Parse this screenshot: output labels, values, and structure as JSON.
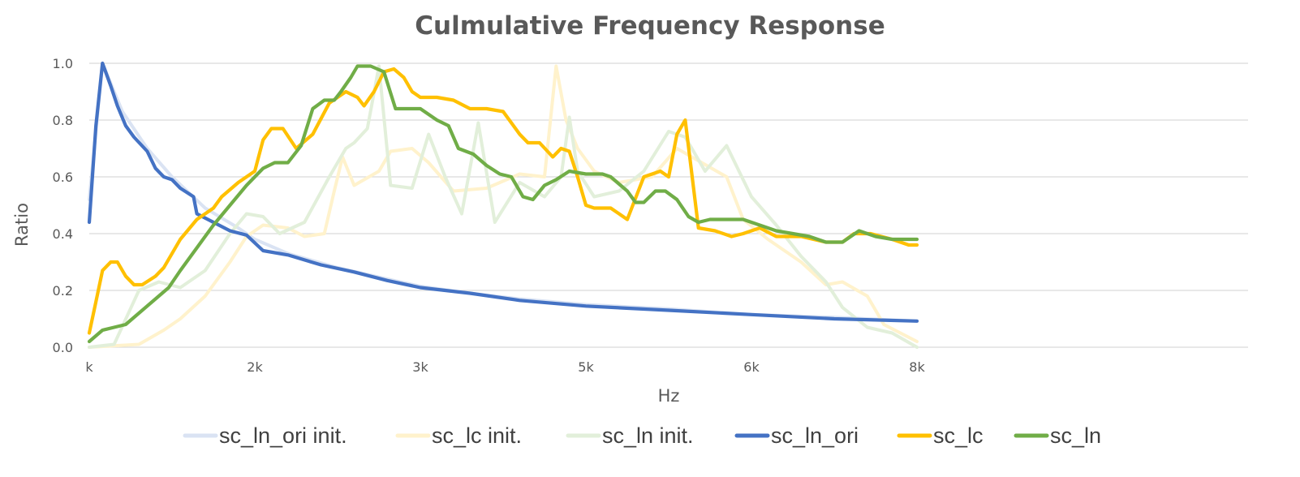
{
  "chart_data": {
    "type": "line",
    "title": "Culmulative Frequency Response",
    "xlabel": "Hz",
    "ylabel": "Ratio",
    "xlim": [
      1,
      8
    ],
    "ylim": [
      0,
      1.0
    ],
    "grid": true,
    "legend": "bottom",
    "x_ticks": [
      {
        "value": 1,
        "label": "k"
      },
      {
        "value": 2,
        "label": "2k"
      },
      {
        "value": 3,
        "label": "3k"
      },
      {
        "value": 4,
        "label": "5k"
      },
      {
        "value": 5,
        "label": "6k"
      },
      {
        "value": 6,
        "label": "8k"
      }
    ],
    "y_ticks": [
      {
        "value": 0.0,
        "label": "0.0"
      },
      {
        "value": 0.2,
        "label": "0.2"
      },
      {
        "value": 0.4,
        "label": "0.4"
      },
      {
        "value": 0.6,
        "label": "0.6"
      },
      {
        "value": 0.8,
        "label": "0.8"
      },
      {
        "value": 1.0,
        "label": "1.0"
      }
    ],
    "series": [
      {
        "name": "sc_ln_ori init.",
        "color": "#dae3f3",
        "points": [
          [
            1,
            0.52
          ],
          [
            1.08,
            1.0
          ],
          [
            1.2,
            0.83
          ],
          [
            1.35,
            0.7
          ],
          [
            1.5,
            0.6
          ],
          [
            1.7,
            0.49
          ],
          [
            1.9,
            0.42
          ],
          [
            2,
            0.38
          ],
          [
            2.2,
            0.33
          ],
          [
            2.5,
            0.28
          ],
          [
            2.8,
            0.24
          ],
          [
            3,
            0.215
          ],
          [
            3.3,
            0.19
          ],
          [
            3.6,
            0.17
          ],
          [
            4,
            0.15
          ],
          [
            4.5,
            0.135
          ],
          [
            5,
            0.115
          ],
          [
            5.5,
            0.105
          ],
          [
            6,
            0.092
          ]
        ]
      },
      {
        "name": "sc_lc init.",
        "color": "#fff2cc",
        "points": [
          [
            1,
            0.0
          ],
          [
            1.3,
            0.01
          ],
          [
            1.45,
            0.06
          ],
          [
            1.55,
            0.1
          ],
          [
            1.7,
            0.18
          ],
          [
            1.85,
            0.3
          ],
          [
            1.95,
            0.39
          ],
          [
            2.05,
            0.43
          ],
          [
            2.2,
            0.42
          ],
          [
            2.3,
            0.39
          ],
          [
            2.42,
            0.4
          ],
          [
            2.48,
            0.55
          ],
          [
            2.53,
            0.67
          ],
          [
            2.6,
            0.57
          ],
          [
            2.75,
            0.62
          ],
          [
            2.82,
            0.69
          ],
          [
            2.95,
            0.7
          ],
          [
            3.05,
            0.65
          ],
          [
            3.2,
            0.55
          ],
          [
            3.4,
            0.56
          ],
          [
            3.6,
            0.61
          ],
          [
            3.75,
            0.6
          ],
          [
            3.82,
            0.99
          ],
          [
            3.88,
            0.8
          ],
          [
            3.95,
            0.7
          ],
          [
            4.05,
            0.62
          ],
          [
            4.2,
            0.58
          ],
          [
            4.4,
            0.6
          ],
          [
            4.55,
            0.7
          ],
          [
            4.7,
            0.65
          ],
          [
            4.85,
            0.6
          ],
          [
            4.95,
            0.45
          ],
          [
            5.1,
            0.38
          ],
          [
            5.3,
            0.3
          ],
          [
            5.45,
            0.22
          ],
          [
            5.55,
            0.23
          ],
          [
            5.7,
            0.18
          ],
          [
            5.8,
            0.08
          ],
          [
            6,
            0.02
          ]
        ]
      },
      {
        "name": "sc_ln init.",
        "color": "#e2efda",
        "points": [
          [
            1,
            0.0
          ],
          [
            1.15,
            0.01
          ],
          [
            1.3,
            0.2
          ],
          [
            1.42,
            0.23
          ],
          [
            1.55,
            0.21
          ],
          [
            1.7,
            0.27
          ],
          [
            1.85,
            0.4
          ],
          [
            1.95,
            0.47
          ],
          [
            2.05,
            0.46
          ],
          [
            2.15,
            0.4
          ],
          [
            2.3,
            0.44
          ],
          [
            2.45,
            0.6
          ],
          [
            2.55,
            0.7
          ],
          [
            2.6,
            0.72
          ],
          [
            2.68,
            0.77
          ],
          [
            2.75,
            0.99
          ],
          [
            2.82,
            0.57
          ],
          [
            2.95,
            0.56
          ],
          [
            3.05,
            0.75
          ],
          [
            3.15,
            0.6
          ],
          [
            3.25,
            0.47
          ],
          [
            3.35,
            0.79
          ],
          [
            3.45,
            0.44
          ],
          [
            3.6,
            0.58
          ],
          [
            3.75,
            0.53
          ],
          [
            3.85,
            0.6
          ],
          [
            3.9,
            0.81
          ],
          [
            3.95,
            0.62
          ],
          [
            4.05,
            0.53
          ],
          [
            4.2,
            0.55
          ],
          [
            4.35,
            0.62
          ],
          [
            4.5,
            0.76
          ],
          [
            4.6,
            0.74
          ],
          [
            4.72,
            0.62
          ],
          [
            4.85,
            0.71
          ],
          [
            5.0,
            0.53
          ],
          [
            5.15,
            0.43
          ],
          [
            5.3,
            0.32
          ],
          [
            5.45,
            0.23
          ],
          [
            5.55,
            0.14
          ],
          [
            5.7,
            0.07
          ],
          [
            5.85,
            0.05
          ],
          [
            6,
            0.0
          ]
        ]
      },
      {
        "name": "sc_ln_ori",
        "color": "#4472c4",
        "points": [
          [
            1,
            0.44
          ],
          [
            1.04,
            0.78
          ],
          [
            1.08,
            1.0
          ],
          [
            1.13,
            0.92
          ],
          [
            1.17,
            0.85
          ],
          [
            1.22,
            0.78
          ],
          [
            1.27,
            0.74
          ],
          [
            1.35,
            0.69
          ],
          [
            1.4,
            0.63
          ],
          [
            1.45,
            0.6
          ],
          [
            1.5,
            0.59
          ],
          [
            1.55,
            0.56
          ],
          [
            1.63,
            0.53
          ],
          [
            1.65,
            0.47
          ],
          [
            1.75,
            0.44
          ],
          [
            1.85,
            0.41
          ],
          [
            1.95,
            0.395
          ],
          [
            2.05,
            0.34
          ],
          [
            2.2,
            0.325
          ],
          [
            2.4,
            0.29
          ],
          [
            2.6,
            0.265
          ],
          [
            2.8,
            0.235
          ],
          [
            3,
            0.21
          ],
          [
            3.3,
            0.19
          ],
          [
            3.6,
            0.165
          ],
          [
            4,
            0.145
          ],
          [
            4.5,
            0.13
          ],
          [
            5,
            0.115
          ],
          [
            5.5,
            0.1
          ],
          [
            6,
            0.092
          ]
        ]
      },
      {
        "name": "sc_lc",
        "color": "#ffc000",
        "points": [
          [
            1,
            0.05
          ],
          [
            1.04,
            0.16
          ],
          [
            1.08,
            0.27
          ],
          [
            1.13,
            0.3
          ],
          [
            1.17,
            0.3
          ],
          [
            1.22,
            0.25
          ],
          [
            1.27,
            0.22
          ],
          [
            1.32,
            0.22
          ],
          [
            1.4,
            0.25
          ],
          [
            1.45,
            0.28
          ],
          [
            1.55,
            0.38
          ],
          [
            1.65,
            0.45
          ],
          [
            1.75,
            0.49
          ],
          [
            1.8,
            0.53
          ],
          [
            1.9,
            0.58
          ],
          [
            2.0,
            0.62
          ],
          [
            2.05,
            0.73
          ],
          [
            2.1,
            0.77
          ],
          [
            2.17,
            0.77
          ],
          [
            2.25,
            0.7
          ],
          [
            2.35,
            0.75
          ],
          [
            2.45,
            0.86
          ],
          [
            2.55,
            0.9
          ],
          [
            2.62,
            0.88
          ],
          [
            2.66,
            0.85
          ],
          [
            2.72,
            0.9
          ],
          [
            2.78,
            0.97
          ],
          [
            2.84,
            0.98
          ],
          [
            2.9,
            0.95
          ],
          [
            2.95,
            0.9
          ],
          [
            3.0,
            0.88
          ],
          [
            3.1,
            0.88
          ],
          [
            3.2,
            0.87
          ],
          [
            3.3,
            0.84
          ],
          [
            3.4,
            0.84
          ],
          [
            3.5,
            0.83
          ],
          [
            3.6,
            0.75
          ],
          [
            3.65,
            0.72
          ],
          [
            3.72,
            0.72
          ],
          [
            3.8,
            0.67
          ],
          [
            3.85,
            0.7
          ],
          [
            3.9,
            0.69
          ],
          [
            3.95,
            0.6
          ],
          [
            4.0,
            0.5
          ],
          [
            4.05,
            0.49
          ],
          [
            4.15,
            0.49
          ],
          [
            4.25,
            0.45
          ],
          [
            4.35,
            0.6
          ],
          [
            4.45,
            0.62
          ],
          [
            4.5,
            0.6
          ],
          [
            4.55,
            0.75
          ],
          [
            4.6,
            0.8
          ],
          [
            4.68,
            0.42
          ],
          [
            4.78,
            0.41
          ],
          [
            4.88,
            0.39
          ],
          [
            4.95,
            0.4
          ],
          [
            5.05,
            0.42
          ],
          [
            5.15,
            0.39
          ],
          [
            5.3,
            0.39
          ],
          [
            5.45,
            0.37
          ],
          [
            5.55,
            0.37
          ],
          [
            5.62,
            0.4
          ],
          [
            5.72,
            0.4
          ],
          [
            5.85,
            0.38
          ],
          [
            5.95,
            0.36
          ],
          [
            6,
            0.36
          ]
        ]
      },
      {
        "name": "sc_ln",
        "color": "#70ad47",
        "points": [
          [
            1,
            0.02
          ],
          [
            1.08,
            0.06
          ],
          [
            1.15,
            0.07
          ],
          [
            1.22,
            0.08
          ],
          [
            1.3,
            0.12
          ],
          [
            1.4,
            0.17
          ],
          [
            1.48,
            0.21
          ],
          [
            1.55,
            0.27
          ],
          [
            1.65,
            0.35
          ],
          [
            1.75,
            0.43
          ],
          [
            1.85,
            0.5
          ],
          [
            1.95,
            0.57
          ],
          [
            2.05,
            0.63
          ],
          [
            2.12,
            0.65
          ],
          [
            2.2,
            0.65
          ],
          [
            2.28,
            0.71
          ],
          [
            2.35,
            0.84
          ],
          [
            2.42,
            0.87
          ],
          [
            2.48,
            0.87
          ],
          [
            2.52,
            0.9
          ],
          [
            2.58,
            0.95
          ],
          [
            2.62,
            0.99
          ],
          [
            2.7,
            0.99
          ],
          [
            2.78,
            0.97
          ],
          [
            2.85,
            0.84
          ],
          [
            3.0,
            0.84
          ],
          [
            3.1,
            0.8
          ],
          [
            3.17,
            0.78
          ],
          [
            3.23,
            0.7
          ],
          [
            3.32,
            0.68
          ],
          [
            3.4,
            0.64
          ],
          [
            3.48,
            0.61
          ],
          [
            3.55,
            0.6
          ],
          [
            3.62,
            0.53
          ],
          [
            3.68,
            0.52
          ],
          [
            3.75,
            0.57
          ],
          [
            3.82,
            0.59
          ],
          [
            3.9,
            0.62
          ],
          [
            4.0,
            0.61
          ],
          [
            4.1,
            0.61
          ],
          [
            4.15,
            0.6
          ],
          [
            4.25,
            0.55
          ],
          [
            4.3,
            0.51
          ],
          [
            4.35,
            0.51
          ],
          [
            4.42,
            0.55
          ],
          [
            4.48,
            0.55
          ],
          [
            4.55,
            0.52
          ],
          [
            4.62,
            0.46
          ],
          [
            4.68,
            0.44
          ],
          [
            4.75,
            0.45
          ],
          [
            4.85,
            0.45
          ],
          [
            4.95,
            0.45
          ],
          [
            5.05,
            0.43
          ],
          [
            5.15,
            0.41
          ],
          [
            5.25,
            0.4
          ],
          [
            5.35,
            0.39
          ],
          [
            5.45,
            0.37
          ],
          [
            5.55,
            0.37
          ],
          [
            5.65,
            0.41
          ],
          [
            5.75,
            0.39
          ],
          [
            5.85,
            0.38
          ],
          [
            5.95,
            0.38
          ],
          [
            6,
            0.38
          ]
        ]
      }
    ]
  }
}
